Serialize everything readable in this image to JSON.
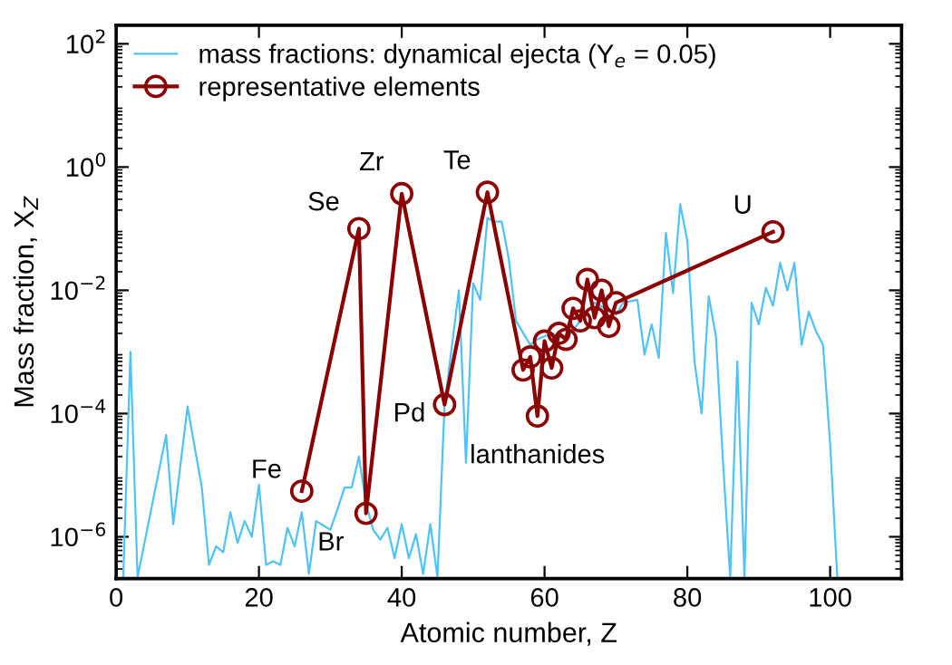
{
  "chart_data": {
    "type": "line",
    "xlabel": "Atomic number, Z",
    "ylabel": "Mass fraction, X$_{Z}$",
    "log": "y",
    "xlim": [
      0,
      110
    ],
    "xticks": [
      0,
      20,
      40,
      60,
      80,
      100
    ],
    "ylim": [
      2.1e-07,
      200
    ],
    "yticks": [
      {
        "value": 1e-06,
        "label": "10$^{−6}$"
      },
      {
        "value": 0.0001,
        "label": "10$^{−4}$"
      },
      {
        "value": 0.01,
        "label": "10$^{−2}$"
      },
      {
        "value": 1,
        "label": "10$^{0}$"
      },
      {
        "value": 100,
        "label": "10$^{2}$"
      }
    ],
    "grid": false,
    "legend": "top left",
    "series": [
      {
        "name": "mass fractions: dynamical ejecta (Y$_{e}$ = 0.05)",
        "color": "#4fc3f7",
        "marker": "none",
        "x": [
          1,
          2,
          3,
          7,
          8,
          10,
          12,
          13,
          14,
          15,
          16,
          17,
          18,
          19,
          20,
          21,
          22,
          23,
          24,
          25,
          26,
          27,
          28,
          30,
          31,
          32,
          33,
          34,
          35,
          36,
          37,
          38,
          39,
          40,
          41,
          42,
          43,
          44,
          45,
          46,
          48,
          49,
          50,
          51,
          52,
          53,
          54,
          55,
          56,
          58,
          59,
          61,
          63,
          65,
          67,
          70,
          71,
          73,
          74,
          75,
          76,
          77,
          78,
          79,
          80,
          81,
          82,
          83,
          84,
          85,
          86,
          87,
          88,
          89,
          90,
          91,
          92,
          93,
          94,
          95,
          96,
          97,
          98,
          99,
          100,
          101
        ],
        "values": [
          2.2e-07,
          0.001,
          2.2e-07,
          4.5e-05,
          1.6e-06,
          0.00013,
          6.3e-06,
          3.5e-07,
          7e-07,
          5.6e-07,
          2.5e-06,
          8e-07,
          1.8e-06,
          1e-06,
          7e-06,
          3.5e-07,
          4e-07,
          3.5e-07,
          1.4e-06,
          7e-07,
          2.5e-06,
          2.5e-07,
          1.8e-06,
          1.3e-06,
          2.8e-06,
          6.3e-06,
          6.3e-06,
          2e-05,
          3.5e-06,
          1.3e-06,
          9e-07,
          1.4e-06,
          4.5e-07,
          1.6e-06,
          4.5e-07,
          1.1e-06,
          2.5e-07,
          1.6e-06,
          2.2e-07,
          0.00014,
          0.01,
          1.6e-05,
          0.013,
          0.007,
          0.15,
          0.13,
          0.13,
          0.032,
          0.0032,
          0.0013,
          0.0016,
          0.002,
          0.0016,
          0.0032,
          0.0063,
          0.004,
          0.0063,
          0.007,
          0.0009,
          0.0028,
          0.0008,
          0.085,
          0.009,
          0.25,
          0.063,
          0.0007,
          0.0001,
          0.008,
          0.0018,
          1.6e-05,
          2.2e-07,
          0.0007,
          2.2e-07,
          0.0063,
          0.0028,
          0.011,
          0.0056,
          0.028,
          0.01,
          0.028,
          0.0013,
          0.0045,
          0.0022,
          0.0013,
          3.2e-05,
          2.2e-07
        ]
      },
      {
        "name": "representative elements",
        "color": "#8b0000",
        "marker": "circle",
        "x": [
          26,
          34,
          35,
          40,
          46,
          52,
          57,
          58,
          59,
          60,
          61,
          62,
          63,
          64,
          65,
          66,
          67,
          68,
          69,
          70,
          92
        ],
        "values": [
          5.5e-06,
          0.1,
          2.4e-06,
          0.37,
          0.00014,
          0.39,
          0.00051,
          0.00083,
          9.1e-05,
          0.0015,
          0.00055,
          0.002,
          0.0016,
          0.0051,
          0.0032,
          0.015,
          0.0036,
          0.01,
          0.0026,
          0.0063,
          0.089
        ]
      }
    ],
    "annotations": [
      {
        "text": "Fe",
        "x": 26,
        "y": 5.5e-06
      },
      {
        "text": "Se",
        "x": 34,
        "y": 0.1
      },
      {
        "text": "Br",
        "x": 35,
        "y": 2.4e-06
      },
      {
        "text": "Zr",
        "x": 40,
        "y": 0.37
      },
      {
        "text": "Pd",
        "x": 46,
        "y": 0.00014
      },
      {
        "text": "Te",
        "x": 52,
        "y": 0.39
      },
      {
        "text": "lanthanides",
        "x": 59,
        "y": 9.1e-05
      },
      {
        "text": "U",
        "x": 92,
        "y": 0.089
      }
    ]
  }
}
